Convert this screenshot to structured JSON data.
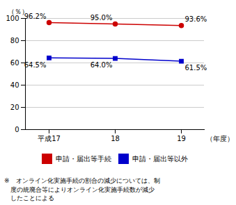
{
  "chart_data": {
    "type": "line",
    "categories": [
      "平成17",
      "18",
      "19"
    ],
    "xlabel": "（年度）",
    "ylabel": "（％）",
    "series": [
      {
        "name": "申請・届出等手続",
        "color": "#cc0000",
        "marker": "circle",
        "values": [
          96.2,
          95.0,
          93.6
        ],
        "value_labels": [
          "96.2%",
          "95.0%",
          "93.6%"
        ]
      },
      {
        "name": "申請・届出等以外",
        "color": "#0000cc",
        "marker": "square",
        "values": [
          64.5,
          64.0,
          61.5
        ],
        "value_labels": [
          "64.5%",
          "64.0%",
          "61.5%"
        ]
      }
    ],
    "ylim": [
      0,
      100
    ],
    "yticks": [
      0,
      20,
      40,
      60,
      80,
      100
    ],
    "grid": true,
    "legend": "bottom",
    "data_labels": true,
    "footnote": "※　オンライン化実施手続の割合の減少については、制\n　度の統廃合等によりオンライン化実施手続数が減少\n　したことによる"
  }
}
